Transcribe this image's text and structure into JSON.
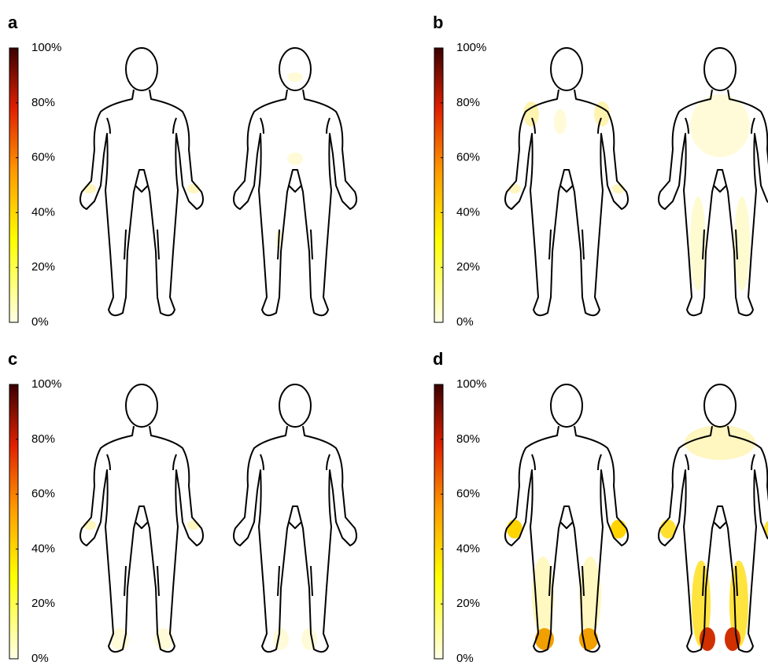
{
  "panels": [
    {
      "label": "a",
      "colorbar_ticks": [
        {
          "value": 0,
          "label": "0%"
        },
        {
          "value": 20,
          "label": "20%"
        },
        {
          "value": 40,
          "label": "40%"
        },
        {
          "value": 60,
          "label": "60%"
        },
        {
          "value": 80,
          "label": "80%"
        },
        {
          "value": 100,
          "label": "100%"
        }
      ]
    },
    {
      "label": "b",
      "colorbar_ticks": [
        {
          "value": 0,
          "label": "0%"
        },
        {
          "value": 20,
          "label": "20%"
        },
        {
          "value": 40,
          "label": "40%"
        },
        {
          "value": 60,
          "label": "60%"
        },
        {
          "value": 80,
          "label": "80%"
        },
        {
          "value": 100,
          "label": "100%"
        }
      ]
    },
    {
      "label": "c",
      "colorbar_ticks": [
        {
          "value": 0,
          "label": "0%"
        },
        {
          "value": 20,
          "label": "20%"
        },
        {
          "value": 40,
          "label": "40%"
        },
        {
          "value": 60,
          "label": "60%"
        },
        {
          "value": 80,
          "label": "80%"
        },
        {
          "value": 100,
          "label": "100%"
        }
      ]
    },
    {
      "label": "d",
      "colorbar_ticks": [
        {
          "value": 0,
          "label": "0%"
        },
        {
          "value": 20,
          "label": "20%"
        },
        {
          "value": 40,
          "label": "40%"
        },
        {
          "value": 60,
          "label": "60%"
        },
        {
          "value": 80,
          "label": "80%"
        },
        {
          "value": 100,
          "label": "100%"
        }
      ]
    }
  ]
}
